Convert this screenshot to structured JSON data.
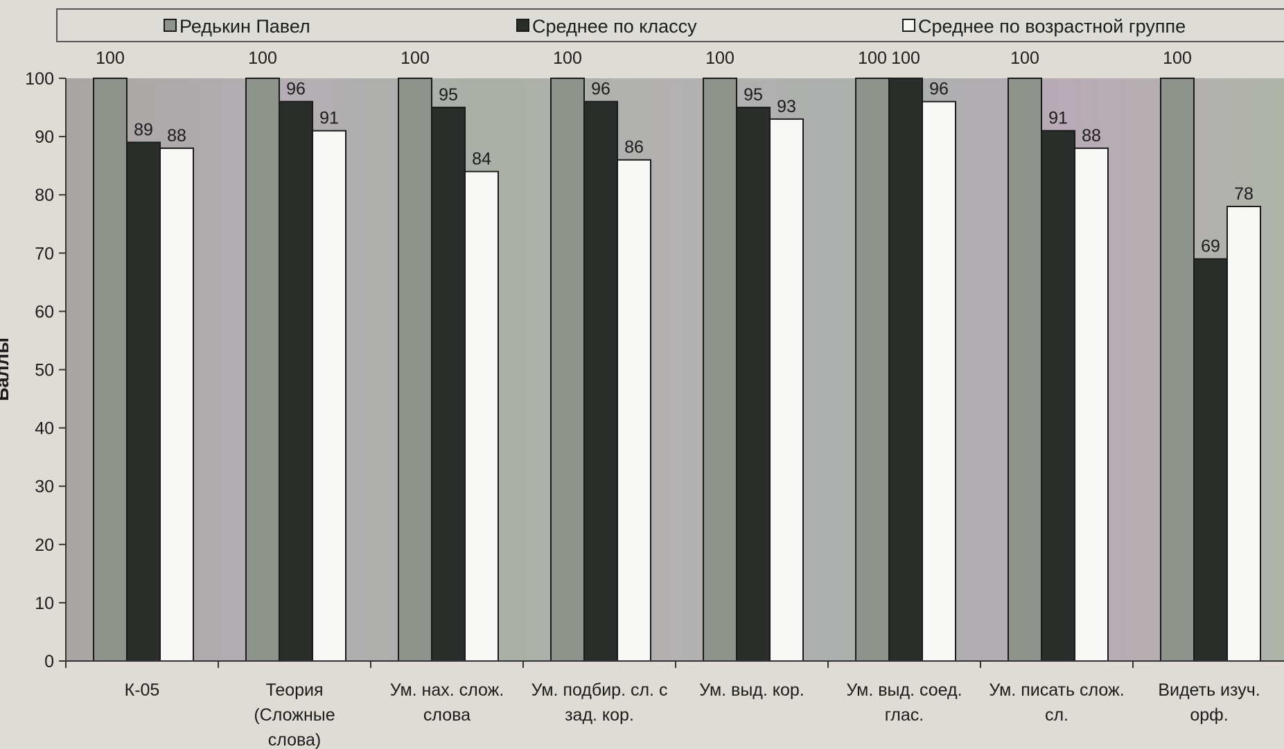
{
  "chart_data": {
    "type": "bar",
    "ylabel": "Баллы",
    "ylim": [
      0,
      100
    ],
    "yticks": [
      0,
      10,
      20,
      30,
      40,
      50,
      60,
      70,
      80,
      90,
      100
    ],
    "grid": false,
    "legend_position": "top",
    "categories": [
      [
        "К-05"
      ],
      [
        "Теория",
        "(Сложные",
        "слова)"
      ],
      [
        "Ум. нах. слож.",
        "слова"
      ],
      [
        "Ум. подбир. сл. с",
        "зад. кор."
      ],
      [
        "Ум. выд. кор."
      ],
      [
        "Ум. выд. соед.",
        "глас."
      ],
      [
        "Ум. писать слож.",
        "сл."
      ],
      [
        "Видеть изуч.",
        "орф."
      ]
    ],
    "series": [
      {
        "name": "Редькин Павел",
        "color": "#8e948c",
        "values": [
          100,
          100,
          100,
          100,
          100,
          100,
          100,
          100
        ]
      },
      {
        "name": "Среднее по классу",
        "color": "#2a2e2a",
        "values": [
          89,
          96,
          95,
          96,
          95,
          100,
          91,
          69
        ]
      },
      {
        "name": "Среднее по возрастной группе",
        "color": "#f8f8f6",
        "values": [
          88,
          91,
          84,
          86,
          93,
          96,
          88,
          78
        ]
      }
    ]
  }
}
